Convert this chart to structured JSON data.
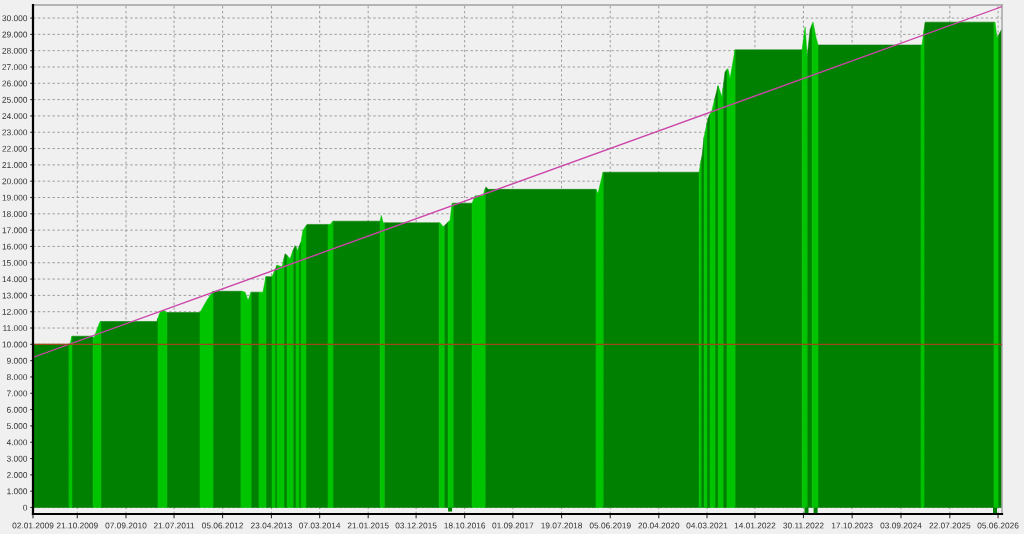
{
  "chart_data": {
    "type": "area",
    "series": [
      {
        "color": "#008000",
        "x": [
          "2009-01-02",
          "2009-08-27",
          "2009-09-05",
          "2009-09-16",
          "2010-01-26",
          "2010-02-02",
          "2010-03-01",
          "2010-03-26",
          "2011-03-30",
          "2011-04-06",
          "2011-05-01",
          "2011-06-04",
          "2012-01-08",
          "2012-02-01",
          "2012-04-03",
          "2012-10-04",
          "2012-11-01",
          "2012-12-10",
          "2013-01-31",
          "2013-02-15",
          "2013-03-18",
          "2013-04-27",
          "2013-05-07",
          "2013-05-17",
          "2013-05-30",
          "2013-06-15",
          "2013-07-15",
          "2013-07-22",
          "2013-08-04",
          "2013-08-20",
          "2013-09-13",
          "2013-09-26",
          "2013-10-02",
          "2013-10-12",
          "2013-10-22",
          "2013-11-04",
          "2013-11-20",
          "2013-12-07",
          "2013-12-14",
          "2014-05-01",
          "2014-05-20",
          "2014-06-03",
          "2015-04-10",
          "2015-04-20",
          "2015-05-07",
          "2016-05-03",
          "2016-05-20",
          "2016-06-05",
          "2016-07-01",
          "2016-07-15",
          "2016-08-03",
          "2016-12-06",
          "2017-01-15",
          "2017-03-02",
          "2017-03-08",
          "2017-03-21",
          "2019-03-03",
          "2019-03-25",
          "2019-04-19",
          "2021-01-11",
          "2021-01-18",
          "2021-01-24",
          "2021-01-31",
          "2021-02-13",
          "2021-02-20",
          "2021-03-04",
          "2021-03-11",
          "2021-03-24",
          "2021-04-10",
          "2021-04-26",
          "2021-05-16",
          "2021-06-01",
          "2021-06-18",
          "2021-07-01",
          "2021-07-14",
          "2021-08-10",
          "2021-09-05",
          "2022-11-21",
          "2022-12-05",
          "2022-12-24",
          "2023-01-13",
          "2023-01-26",
          "2023-02-10",
          "2023-03-06",
          "2025-01-13",
          "2025-01-25",
          "2025-02-02",
          "2025-02-09",
          "2026-05-09",
          "2026-05-20",
          "2026-06-05",
          "2026-06-28"
        ],
        "values": [
          10000,
          10000,
          null,
          10500,
          10500,
          10450,
          null,
          11400,
          11400,
          11600,
          null,
          11950,
          11950,
          null,
          13250,
          13250,
          null,
          13200,
          13200,
          null,
          14150,
          14150,
          null,
          14550,
          14850,
          null,
          15250,
          15550,
          15450,
          null,
          15750,
          16050,
          15950,
          null,
          16000,
          16250,
          null,
          17250,
          17350,
          17350,
          null,
          17550,
          17550,
          null,
          17450,
          17450,
          null,
          17250,
          17500,
          null,
          18650,
          18650,
          null,
          19500,
          19650,
          19500,
          19500,
          null,
          20550,
          20550,
          null,
          21250,
          21600,
          22700,
          null,
          23550,
          23850,
          24100,
          null,
          25100,
          25850,
          null,
          25700,
          26700,
          26850,
          null,
          28050,
          28050,
          null,
          27600,
          29300,
          29600,
          null,
          28350,
          28350,
          null,
          29250,
          29750,
          29750,
          null,
          28900,
          29300
        ]
      },
      {
        "color": "#00c400",
        "x": [
          "2009-08-27",
          "2009-09-03",
          "2009-09-16",
          "2009-12-01",
          "2010-02-02",
          "2010-02-08",
          "2010-03-20",
          "2010-03-26",
          "2010-09-01",
          "2011-04-06",
          "2011-04-19",
          "2011-05-15",
          "2011-05-28",
          "2011-06-04",
          "2011-09-01",
          "2012-01-08",
          "2012-02-23",
          "2012-04-03",
          "2012-07-01",
          "2012-10-04",
          "2012-10-11",
          "2012-10-31",
          "2012-11-20",
          "2012-12-10",
          "2013-01-01",
          "2013-01-31",
          "2013-02-26",
          "2013-03-18",
          "2013-04-01",
          "2013-04-27",
          "2013-05-17",
          "2013-05-24",
          "2013-05-30",
          "2013-07-02",
          "2013-07-15",
          "2013-07-25",
          "2013-08-04",
          "2013-08-24",
          "2013-09-13",
          "2013-09-20",
          "2013-10-02",
          "2013-10-15",
          "2013-10-22",
          "2013-10-28",
          "2013-11-04",
          "2013-11-17",
          "2013-12-07",
          "2014-02-01",
          "2014-05-01",
          "2014-05-15",
          "2014-06-03",
          "2014-10-01",
          "2015-04-10",
          "2015-04-17",
          "2015-04-30",
          "2015-05-07",
          "2015-10-01",
          "2016-05-03",
          "2016-05-09",
          "2016-05-29",
          "2016-06-05",
          "2016-06-20",
          "2016-07-01",
          "2016-07-14",
          "2016-07-27",
          "2016-08-03",
          "2016-10-01",
          "2016-12-06",
          "2016-12-26",
          "2017-02-16",
          "2017-03-02",
          "2018-01-01",
          "2019-03-03",
          "2019-03-16",
          "2019-04-19",
          "2020-01-01",
          "2021-01-11",
          "2021-01-24",
          "2021-02-01",
          "2021-02-13",
          "2021-03-04",
          "2021-03-15",
          "2021-03-24",
          "2021-04-06",
          "2021-04-26",
          "2021-05-05",
          "2021-05-16",
          "2021-06-11",
          "2021-06-18",
          "2021-07-05",
          "2021-07-14",
          "2021-07-20",
          "2021-08-03",
          "2021-09-05",
          "2022-03-01",
          "2022-11-21",
          "2022-12-11",
          "2022-12-24",
          "2023-01-05",
          "2023-01-26",
          "2023-02-01",
          "2023-02-21",
          "2023-03-06",
          "2024-01-01",
          "2025-01-13",
          "2025-01-20",
          "2025-02-02",
          "2025-06-01",
          "2026-05-09",
          "2026-05-16",
          "2026-05-29",
          "2026-06-05"
        ],
        "values": [
          10000,
          10000,
          10500,
          null,
          10450,
          10400,
          11400,
          11400,
          null,
          11600,
          11950,
          12100,
          11950,
          11950,
          null,
          11950,
          12700,
          13250,
          null,
          13250,
          13250,
          13200,
          12700,
          13200,
          null,
          13200,
          13200,
          14150,
          null,
          14150,
          14550,
          null,
          14850,
          14750,
          15250,
          null,
          15450,
          15250,
          15750,
          null,
          15950,
          15750,
          16000,
          null,
          16250,
          17000,
          17250,
          null,
          17350,
          17350,
          17550,
          null,
          17550,
          17900,
          17450,
          17450,
          null,
          17450,
          17450,
          17200,
          17250,
          null,
          17500,
          17600,
          18650,
          18650,
          null,
          18650,
          19100,
          19100,
          19500,
          null,
          19500,
          19250,
          20550,
          null,
          20550,
          21250,
          null,
          22700,
          23550,
          null,
          24100,
          24350,
          25100,
          null,
          25850,
          25150,
          25700,
          null,
          26850,
          26900,
          26300,
          28050,
          null,
          28050,
          29450,
          27600,
          null,
          29600,
          29750,
          28800,
          28350,
          null,
          28350,
          28350,
          29250,
          null,
          29750,
          29750,
          28750,
          28900
        ]
      },
      {
        "type": "line",
        "color": "#cc44aa",
        "x": [
          "2009-01-02",
          "2026-07-01"
        ],
        "values": [
          9200,
          30700
        ]
      },
      {
        "type": "bar",
        "color": "#008000",
        "x": [
          "2016-07-14",
          "2022-12-20",
          "2023-02-18",
          "2026-05-16"
        ],
        "values": [
          -250,
          -350,
          -350,
          -350
        ]
      }
    ],
    "xlim": [
      "2009-01-02",
      "2026-07-01"
    ],
    "xticks": [
      {
        "value": "2009-01-02",
        "label": "02.01.2009"
      },
      {
        "value": "2009-10-21",
        "label": "21.10.2009"
      },
      {
        "value": "2010-09-07",
        "label": "07.09.2010"
      },
      {
        "value": "2011-07-21",
        "label": "21.07.2011"
      },
      {
        "value": "2012-06-05",
        "label": "05.06.2012"
      },
      {
        "value": "2013-04-23",
        "label": "23.04.2013"
      },
      {
        "value": "2014-03-07",
        "label": "07.03.2014"
      },
      {
        "value": "2015-01-21",
        "label": "21.01.2015"
      },
      {
        "value": "2015-12-03",
        "label": "03.12.2015"
      },
      {
        "value": "2016-10-18",
        "label": "18.10.2016"
      },
      {
        "value": "2017-09-01",
        "label": "01.09.2017"
      },
      {
        "value": "2018-07-19",
        "label": "19.07.2018"
      },
      {
        "value": "2019-06-05",
        "label": "05.06.2019"
      },
      {
        "value": "2020-04-20",
        "label": "20.04.2020"
      },
      {
        "value": "2021-03-04",
        "label": "04.03.2021"
      },
      {
        "value": "2022-01-14",
        "label": "14.01.2022"
      },
      {
        "value": "2022-11-30",
        "label": "30.11.2022"
      },
      {
        "value": "2023-10-17",
        "label": "17.10.2023"
      },
      {
        "value": "2024-09-03",
        "label": "03.09.2024"
      },
      {
        "value": "2025-07-22",
        "label": "22.07.2025"
      },
      {
        "value": "2026-06-05",
        "label": "05.06.2026"
      }
    ],
    "ylim": [
      -400,
      30800
    ],
    "yticks": [
      0,
      {
        "value": 1000,
        "label": "1.000"
      },
      {
        "value": 2000,
        "label": "2.000"
      },
      {
        "value": 3000,
        "label": "3.000"
      },
      {
        "value": 4000,
        "label": "4.000"
      },
      {
        "value": 5000,
        "label": "5.000"
      },
      {
        "value": 6000,
        "label": "6.000"
      },
      {
        "value": 7000,
        "label": "7.000"
      },
      {
        "value": 8000,
        "label": "8.000"
      },
      {
        "value": 9000,
        "label": "9.000"
      },
      {
        "value": 10000,
        "label": "10.000"
      },
      {
        "value": 11000,
        "label": "11.000"
      },
      {
        "value": 12000,
        "label": "12.000"
      },
      {
        "value": 13000,
        "label": "13.000"
      },
      {
        "value": 14000,
        "label": "14.000"
      },
      {
        "value": 15000,
        "label": "15.000"
      },
      {
        "value": 16000,
        "label": "16.000"
      },
      {
        "value": 17000,
        "label": "17.000"
      },
      {
        "value": 18000,
        "label": "18.000"
      },
      {
        "value": 19000,
        "label": "19.000"
      },
      {
        "value": 20000,
        "label": "20.000"
      },
      {
        "value": 21000,
        "label": "21.000"
      },
      {
        "value": 22000,
        "label": "22.000"
      },
      {
        "value": 23000,
        "label": "23.000"
      },
      {
        "value": 24000,
        "label": "24.000"
      },
      {
        "value": 25000,
        "label": "25.000"
      },
      {
        "value": 26000,
        "label": "26.000"
      },
      {
        "value": 27000,
        "label": "27.000"
      },
      {
        "value": 28000,
        "label": "28.000"
      },
      {
        "value": 29000,
        "label": "29.000"
      },
      {
        "value": 30000,
        "label": "30.000"
      }
    ],
    "ref_lines": [
      {
        "axis": "y",
        "value": 10000,
        "color": "#a0461e"
      }
    ],
    "grid": true
  }
}
